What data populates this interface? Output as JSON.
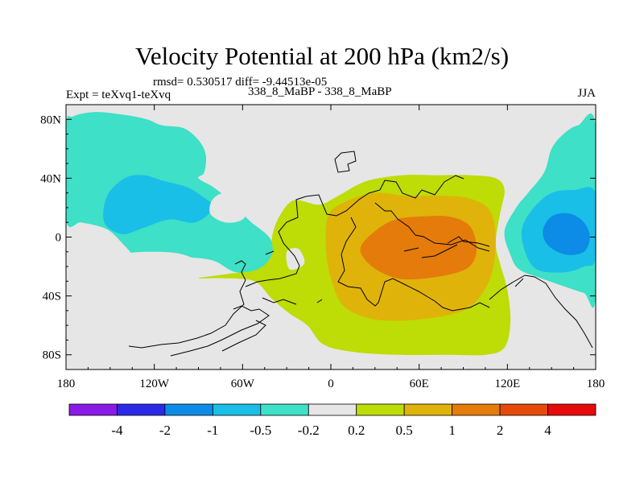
{
  "header": {
    "title": "Velocity Potential at 200 hPa (km2/s)",
    "stats": "rmsd= 0.530517 diff= -9.44513e-05",
    "experiment": "Expt = teXvq1-teXvq",
    "runs": "338_8_MaBP - 338_8_MaBP",
    "season": "JJA"
  },
  "chart_data": {
    "type": "filled-contour-map",
    "title": "Velocity Potential at 200 hPa (km2/s)",
    "projection": "cylindrical-equidistant",
    "xlim": [
      -180,
      180
    ],
    "ylim": [
      -90,
      90
    ],
    "x_ticks": [
      {
        "value": -180,
        "label": "180"
      },
      {
        "value": -120,
        "label": "120W"
      },
      {
        "value": -60,
        "label": "60W"
      },
      {
        "value": 0,
        "label": "0"
      },
      {
        "value": 60,
        "label": "60E"
      },
      {
        "value": 120,
        "label": "120E"
      },
      {
        "value": 180,
        "label": "180"
      }
    ],
    "y_ticks": [
      {
        "value": 80,
        "label": "80N"
      },
      {
        "value": 40,
        "label": "40N"
      },
      {
        "value": 0,
        "label": "0"
      },
      {
        "value": -40,
        "label": "40S"
      },
      {
        "value": -80,
        "label": "80S"
      }
    ],
    "background_color": "#e6e6e6",
    "fields": [
      {
        "name": "neg-west-outer",
        "range": "-0.5 to -0.2",
        "color": "#3ee0c7",
        "points": [
          [
            -180,
            75
          ],
          [
            -175,
            82
          ],
          [
            -160,
            85
          ],
          [
            -140,
            83
          ],
          [
            -125,
            80
          ],
          [
            -115,
            76
          ],
          [
            -100,
            74
          ],
          [
            -90,
            66
          ],
          [
            -85,
            56
          ],
          [
            -86,
            44
          ],
          [
            -90,
            40
          ],
          [
            -80,
            34
          ],
          [
            -70,
            26
          ],
          [
            -62,
            18
          ],
          [
            -54,
            10
          ],
          [
            -42,
            0
          ],
          [
            -36,
            -14
          ],
          [
            -40,
            -24
          ],
          [
            -64,
            -24
          ],
          [
            -80,
            -16
          ],
          [
            -100,
            -14
          ],
          [
            -120,
            -18
          ],
          [
            -132,
            -14
          ],
          [
            -140,
            -6
          ],
          [
            -150,
            4
          ],
          [
            -160,
            8
          ],
          [
            -170,
            10
          ],
          [
            -180,
            12
          ]
        ]
      },
      {
        "name": "neg-west-inner",
        "range": "-1 to -0.5",
        "color": "#19bfe6",
        "points": [
          [
            -152,
            28
          ],
          [
            -140,
            40
          ],
          [
            -127,
            42
          ],
          [
            -113,
            38
          ],
          [
            -98,
            34
          ],
          [
            -88,
            28
          ],
          [
            -80,
            20
          ],
          [
            -92,
            10
          ],
          [
            -110,
            12
          ],
          [
            -128,
            6
          ],
          [
            -142,
            2
          ],
          [
            -154,
            10
          ]
        ]
      },
      {
        "name": "pos-africa-outer",
        "range": "0.2 to 0.5",
        "color": "#bedc05",
        "points": [
          [
            -90,
            -28
          ],
          [
            -72,
            -28
          ],
          [
            -52,
            -30
          ],
          [
            -40,
            -42
          ],
          [
            -28,
            -52
          ],
          [
            -16,
            -60
          ],
          [
            -5,
            -73
          ],
          [
            15,
            -78
          ],
          [
            45,
            -80
          ],
          [
            80,
            -80
          ],
          [
            105,
            -80
          ],
          [
            118,
            -75
          ],
          [
            122,
            -58
          ],
          [
            120,
            -36
          ],
          [
            115,
            -18
          ],
          [
            112,
            -4
          ],
          [
            115,
            16
          ],
          [
            118,
            32
          ],
          [
            112,
            40
          ],
          [
            95,
            42
          ],
          [
            72,
            42
          ],
          [
            48,
            42
          ],
          [
            24,
            38
          ],
          [
            5,
            28
          ],
          [
            -8,
            22
          ],
          [
            -25,
            25
          ],
          [
            -35,
            14
          ],
          [
            -40,
            0
          ],
          [
            -40,
            -12
          ],
          [
            -50,
            -22
          ],
          [
            -70,
            -25
          ]
        ]
      },
      {
        "name": "pos-africa-mid",
        "range": "0.5 to 1",
        "color": "#dfb30a",
        "points": [
          [
            -2,
            14
          ],
          [
            10,
            24
          ],
          [
            30,
            30
          ],
          [
            52,
            28
          ],
          [
            76,
            28
          ],
          [
            95,
            26
          ],
          [
            108,
            18
          ],
          [
            112,
            0
          ],
          [
            110,
            -22
          ],
          [
            103,
            -38
          ],
          [
            90,
            -50
          ],
          [
            60,
            -56
          ],
          [
            30,
            -56
          ],
          [
            10,
            -48
          ],
          [
            2,
            -34
          ],
          [
            -3,
            -12
          ]
        ]
      },
      {
        "name": "pos-africa-inner",
        "range": "1 to 2",
        "color": "#e57b0a",
        "points": [
          [
            20,
            -8
          ],
          [
            30,
            4
          ],
          [
            44,
            12
          ],
          [
            62,
            14
          ],
          [
            80,
            14
          ],
          [
            94,
            8
          ],
          [
            99,
            -6
          ],
          [
            96,
            -18
          ],
          [
            86,
            -24
          ],
          [
            65,
            -28
          ],
          [
            45,
            -28
          ],
          [
            28,
            -20
          ]
        ]
      },
      {
        "name": "neg-east-outer",
        "range": "-0.5 to -0.2",
        "color": "#3ee0c7",
        "points": [
          [
            180,
            75
          ],
          [
            168,
            76
          ],
          [
            158,
            70
          ],
          [
            150,
            60
          ],
          [
            145,
            44
          ],
          [
            134,
            30
          ],
          [
            126,
            20
          ],
          [
            118,
            4
          ],
          [
            122,
            -12
          ],
          [
            128,
            -22
          ],
          [
            143,
            -28
          ],
          [
            160,
            -34
          ],
          [
            172,
            -38
          ],
          [
            180,
            -40
          ]
        ]
      },
      {
        "name": "neg-east-mid",
        "range": "-1 to -0.5",
        "color": "#19bfe6",
        "points": [
          [
            180,
            30
          ],
          [
            165,
            32
          ],
          [
            150,
            30
          ],
          [
            138,
            20
          ],
          [
            130,
            6
          ],
          [
            132,
            -10
          ],
          [
            140,
            -22
          ],
          [
            158,
            -24
          ],
          [
            172,
            -20
          ],
          [
            180,
            -14
          ]
        ]
      },
      {
        "name": "neg-east-inner",
        "range": "-2 to -1",
        "color": "#0c8ce6",
        "points": [
          [
            150,
            14
          ],
          [
            162,
            16
          ],
          [
            172,
            10
          ],
          [
            176,
            0
          ],
          [
            172,
            -10
          ],
          [
            160,
            -12
          ],
          [
            148,
            -6
          ],
          [
            144,
            4
          ]
        ]
      }
    ],
    "colorbar": {
      "colors": [
        "#8a1ae6",
        "#2a2ae6",
        "#0c8ce6",
        "#19bfe6",
        "#3ee0c7",
        "#e6e6e6",
        "#bedc05",
        "#dfb30a",
        "#e57b0a",
        "#e54a0a",
        "#e60a0a"
      ],
      "labels": [
        "-4",
        "-2",
        "-1",
        "-0.5",
        "-0.2",
        "0.2",
        "0.5",
        "1",
        "2",
        "4"
      ]
    }
  }
}
